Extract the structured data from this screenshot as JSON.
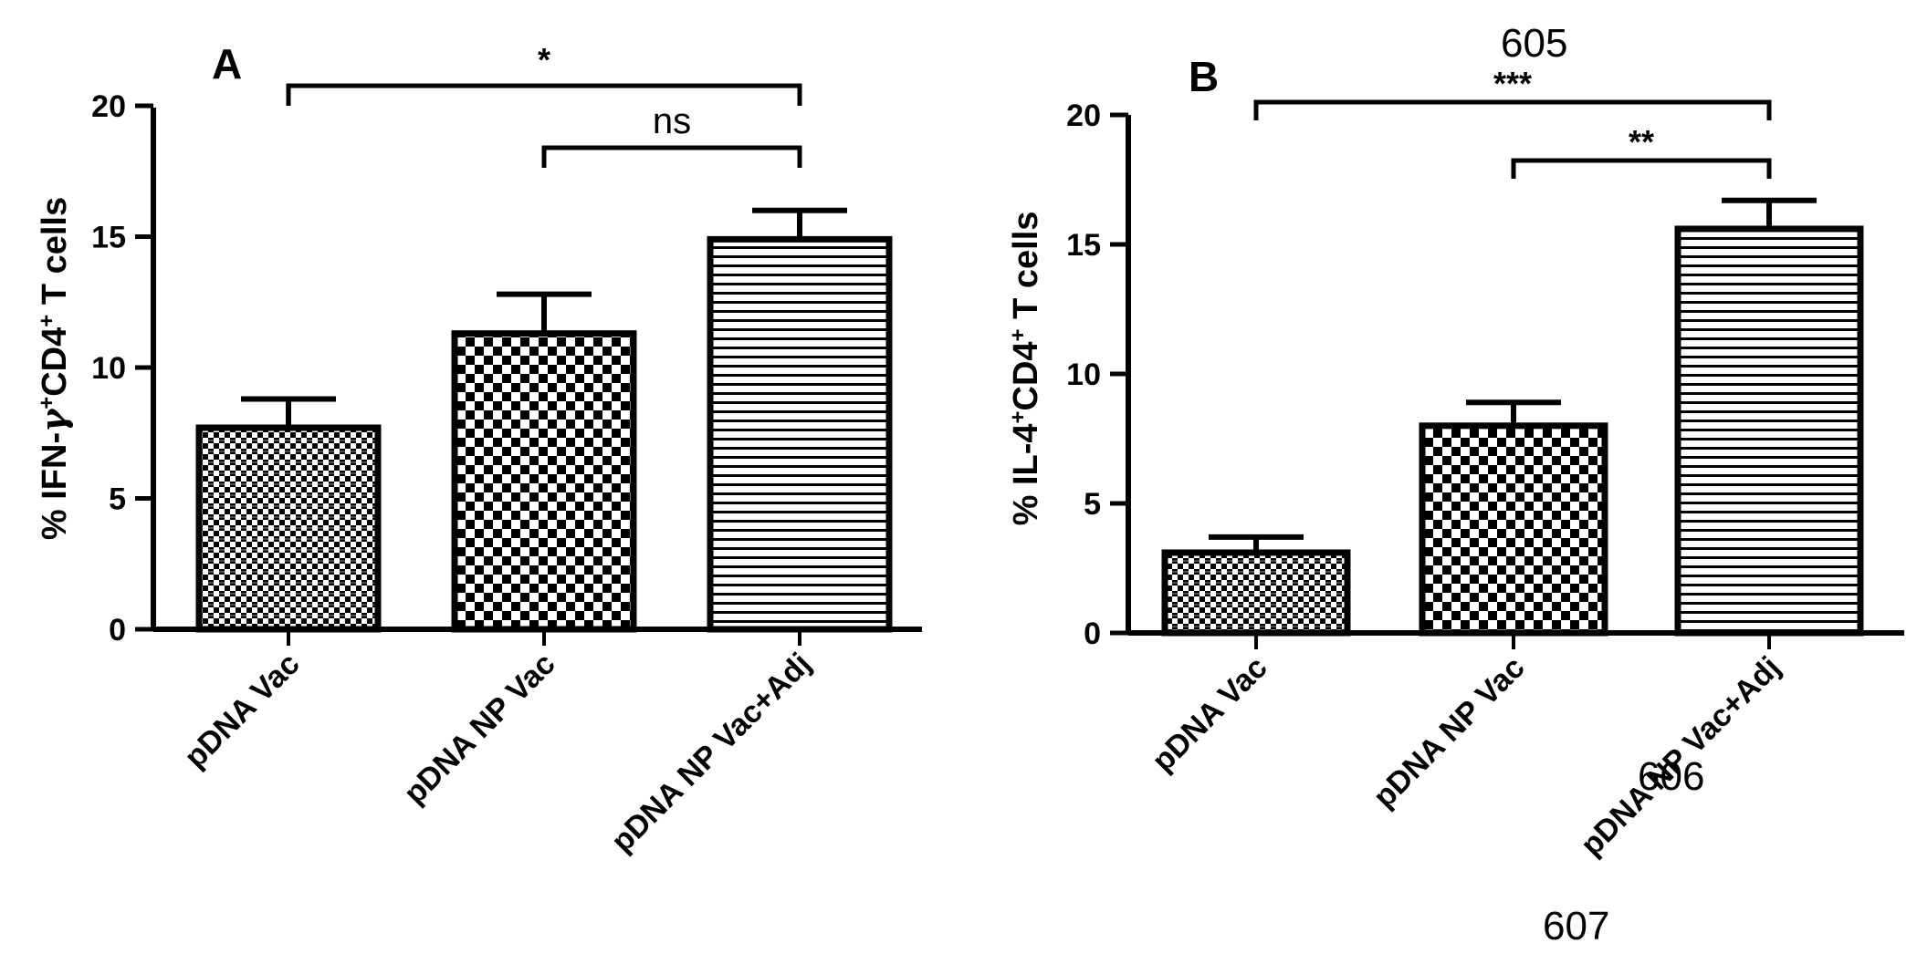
{
  "chart_data": [
    {
      "type": "bar",
      "panel": "A",
      "categories": [
        "pDNA Vac",
        "pDNA NP Vac",
        "pDNA NP Vac+Adj"
      ],
      "values": [
        7.7,
        11.3,
        14.9
      ],
      "errors": [
        1.1,
        1.5,
        1.1
      ],
      "patterns": [
        "fine-checker",
        "checker",
        "hstripe"
      ],
      "ylabel_parts": [
        "% IFN-",
        "γ",
        "+",
        "CD4",
        "+",
        " T cells"
      ],
      "ylim": [
        0,
        20
      ],
      "yticks": [
        0,
        5,
        10,
        15,
        20
      ],
      "significance": [
        {
          "from": 0,
          "to": 2,
          "label": "*"
        },
        {
          "from": 1,
          "to": 2,
          "label": "ns"
        }
      ]
    },
    {
      "type": "bar",
      "panel": "B",
      "categories": [
        "pDNA Vac",
        "pDNA NP Vac",
        "pDNA NP Vac+Adj"
      ],
      "values": [
        3.1,
        8.0,
        15.6
      ],
      "errors": [
        0.6,
        0.9,
        1.1
      ],
      "patterns": [
        "fine-checker",
        "checker",
        "hstripe"
      ],
      "ylabel_parts": [
        "% IL-4",
        "+",
        "CD4",
        "+",
        " T cells"
      ],
      "ylim": [
        0,
        20
      ],
      "yticks": [
        0,
        5,
        10,
        15,
        20
      ],
      "significance": [
        {
          "from": 0,
          "to": 2,
          "label": "***"
        },
        {
          "from": 1,
          "to": 2,
          "label": "**"
        }
      ]
    }
  ],
  "overlay_numbers": [
    "605",
    "606",
    "607"
  ]
}
